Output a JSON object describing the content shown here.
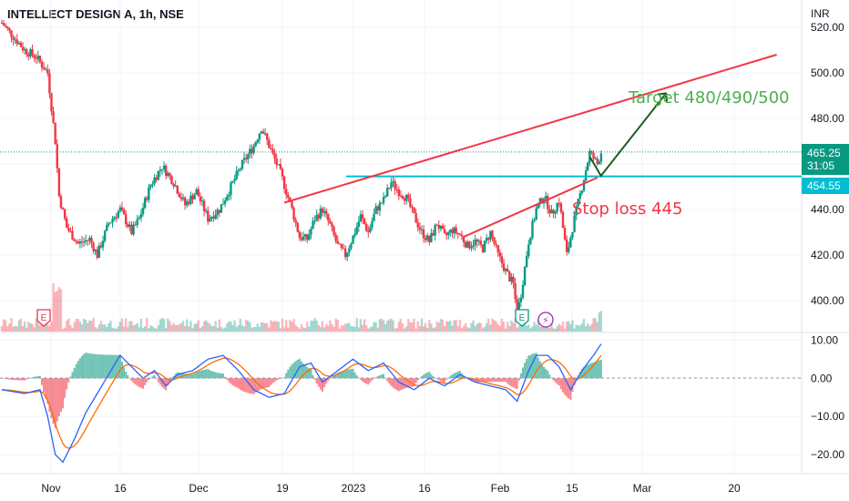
{
  "header": {
    "title": "INTELLECT DESIGN A, 1h, NSE",
    "currency": "INR"
  },
  "price_axis": {
    "ticks": [
      "520.00",
      "500.00",
      "480.00",
      "440.00",
      "420.00",
      "400.00"
    ]
  },
  "macd_axis": {
    "ticks": [
      "10.00",
      "0.00",
      "−10.00",
      "−20.00"
    ]
  },
  "time_axis": {
    "labels": [
      "Nov",
      "16",
      "Dec",
      "19",
      "2023",
      "16",
      "Feb",
      "15",
      "Mar",
      "20"
    ]
  },
  "price_tags": {
    "last_price": "465.25",
    "countdown": "31:05",
    "level": "454.55",
    "last_color": "#089981",
    "level_color": "#00bcd4"
  },
  "annotations": {
    "target": "Target 480/490/500",
    "stop_loss": "Stop loss 445",
    "target_color": "#4caf50",
    "stop_color": "#f23645"
  },
  "markers": {
    "earnings_1": "E",
    "earnings_2": "E",
    "dividend": "⚡"
  },
  "colors": {
    "up": "#089981",
    "down": "#f23645",
    "trendline": "#f23645",
    "support": "#00bcd4",
    "macd_line": "#2962ff",
    "signal_line": "#ff6d00",
    "arrow": "#1b5e20"
  },
  "chart_data": {
    "type": "candlestick",
    "symbol": "INTELLECT DESIGN A",
    "interval": "1h",
    "exchange": "NSE",
    "y_unit": "INR",
    "price_ylim": [
      386,
      532
    ],
    "price_path": [
      [
        0,
        522
      ],
      [
        3,
        516
      ],
      [
        6,
        510
      ],
      [
        9,
        507
      ],
      [
        12,
        500
      ],
      [
        14,
        470
      ],
      [
        15,
        446
      ],
      [
        17,
        432
      ],
      [
        20,
        425
      ],
      [
        23,
        427
      ],
      [
        25,
        420
      ],
      [
        28,
        434
      ],
      [
        31,
        440
      ],
      [
        34,
        430
      ],
      [
        36,
        436
      ],
      [
        39,
        451
      ],
      [
        42,
        459
      ],
      [
        45,
        452
      ],
      [
        48,
        442
      ],
      [
        51,
        448
      ],
      [
        54,
        436
      ],
      [
        57,
        440
      ],
      [
        60,
        450
      ],
      [
        63,
        460
      ],
      [
        66,
        468
      ],
      [
        68,
        476
      ],
      [
        70,
        468
      ],
      [
        73,
        456
      ],
      [
        76,
        440
      ],
      [
        78,
        428
      ],
      [
        80,
        427
      ],
      [
        82,
        436
      ],
      [
        84,
        440
      ],
      [
        86,
        433
      ],
      [
        88,
        424
      ],
      [
        90,
        420
      ],
      [
        92,
        428
      ],
      [
        94,
        437
      ],
      [
        96,
        430
      ],
      [
        98,
        440
      ],
      [
        100,
        444
      ],
      [
        102,
        452
      ],
      [
        104,
        448
      ],
      [
        106,
        445
      ],
      [
        108,
        437
      ],
      [
        110,
        430
      ],
      [
        112,
        426
      ],
      [
        114,
        434
      ],
      [
        116,
        428
      ],
      [
        118,
        431
      ],
      [
        120,
        429
      ],
      [
        122,
        424
      ],
      [
        124,
        426
      ],
      [
        126,
        423
      ],
      [
        128,
        430
      ],
      [
        130,
        420
      ],
      [
        132,
        413
      ],
      [
        134,
        407
      ],
      [
        135,
        394
      ],
      [
        136,
        403
      ],
      [
        138,
        426
      ],
      [
        140,
        440
      ],
      [
        142,
        446
      ],
      [
        144,
        438
      ],
      [
        146,
        444
      ],
      [
        148,
        420
      ],
      [
        150,
        436
      ],
      [
        152,
        450
      ],
      [
        154,
        465
      ],
      [
        156,
        460
      ],
      [
        157,
        465.25
      ]
    ],
    "support_level": 454.55,
    "last_price": 465.25,
    "trendlines": [
      {
        "name": "upper resistance",
        "from": [
          74,
          443
        ],
        "to": [
          203,
          508
        ]
      },
      {
        "name": "lower rising",
        "from": [
          121,
          428
        ],
        "to": [
          156,
          454
        ]
      }
    ],
    "projection": {
      "from": [
        156,
        454
      ],
      "to": [
        174,
        491
      ]
    },
    "macd_ylim": [
      -25,
      12
    ],
    "macd_path": [
      [
        0,
        -3
      ],
      [
        6,
        -4
      ],
      [
        10,
        -3
      ],
      [
        12,
        -10
      ],
      [
        14,
        -20
      ],
      [
        16,
        -22
      ],
      [
        19,
        -16
      ],
      [
        22,
        -9
      ],
      [
        25,
        -4
      ],
      [
        28,
        1
      ],
      [
        31,
        6
      ],
      [
        34,
        3
      ],
      [
        37,
        0
      ],
      [
        40,
        2
      ],
      [
        43,
        -2
      ],
      [
        46,
        1
      ],
      [
        50,
        2
      ],
      [
        54,
        5
      ],
      [
        58,
        6
      ],
      [
        62,
        2
      ],
      [
        66,
        -3
      ],
      [
        70,
        -5
      ],
      [
        74,
        -4
      ],
      [
        78,
        3
      ],
      [
        81,
        4
      ],
      [
        84,
        -1
      ],
      [
        88,
        2
      ],
      [
        92,
        5
      ],
      [
        96,
        2
      ],
      [
        100,
        4
      ],
      [
        104,
        -1
      ],
      [
        108,
        -3
      ],
      [
        112,
        0
      ],
      [
        116,
        -2
      ],
      [
        120,
        1
      ],
      [
        124,
        -1
      ],
      [
        128,
        -2
      ],
      [
        132,
        -3
      ],
      [
        135,
        -6
      ],
      [
        138,
        2
      ],
      [
        140,
        6
      ],
      [
        143,
        6
      ],
      [
        146,
        3
      ],
      [
        149,
        -3
      ],
      [
        152,
        2
      ],
      [
        155,
        6
      ],
      [
        157,
        9
      ]
    ],
    "macd_histogram_note": "bars in MACD pane alternate green/red around zero"
  }
}
